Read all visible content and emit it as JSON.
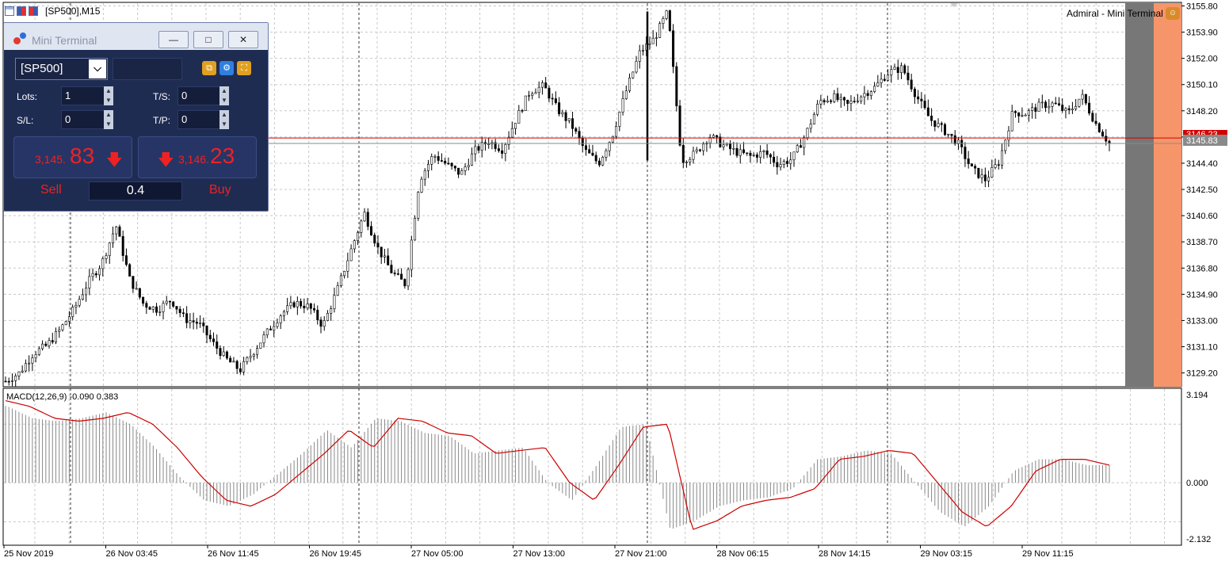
{
  "window": {
    "title": "[SP500],M15"
  },
  "broker": {
    "name": "Admiral - Mini Terminal"
  },
  "colors": {
    "bid_line": "#d40000",
    "ask_line": "#8a8a8a",
    "macd_signal": "#cc0000",
    "macd_hist": "#888888",
    "price_up": "#000000",
    "sell_red": "#ee2222"
  },
  "mini_terminal": {
    "title": "Mini Terminal",
    "symbol": "[SP500]",
    "lots_label": "Lots:",
    "lots_value": "1",
    "ts_label": "T/S:",
    "ts_value": "0",
    "sl_label": "S/L:",
    "sl_value": "0",
    "tp_label": "T/P:",
    "tp_value": "0",
    "sell_price_small": "3,145.",
    "sell_price_big": "83",
    "buy_price_small": "3,146.",
    "buy_price_big": "23",
    "sell_label": "Sell",
    "buy_label": "Buy",
    "volume": "0.4",
    "buttons": {
      "minimize": "—",
      "restore": "□",
      "close": "✕"
    },
    "tools": [
      "copy-icon",
      "settings-icon",
      "expand-icon"
    ]
  },
  "price_axis": {
    "ticks": [
      "3155.80",
      "3153.90",
      "3152.00",
      "3150.10",
      "3148.20",
      "3146.30",
      "3144.40",
      "3142.50",
      "3140.60",
      "3138.70",
      "3136.80",
      "3134.90",
      "3133.00",
      "3131.10",
      "3129.20"
    ],
    "bid_label": "3145.83",
    "ask_label": "3146.23"
  },
  "macd": {
    "label": "MACD(12,26,9) -0.090 0.383",
    "axis_ticks": [
      "3.194",
      "0.000",
      "-2.132"
    ]
  },
  "time_axis": {
    "ticks": [
      "25 Nov 2019",
      "26 Nov 03:45",
      "26 Nov 11:45",
      "26 Nov 19:45",
      "27 Nov 05:00",
      "27 Nov 13:00",
      "27 Nov 21:00",
      "28 Nov 06:15",
      "28 Nov 14:15",
      "29 Nov 03:15",
      "29 Nov 11:15"
    ]
  },
  "chart_data": [
    {
      "type": "candlestick",
      "symbol": "[SP500]",
      "timeframe": "M15",
      "close_path": [
        3128.6,
        3129.2,
        3130.6,
        3131.2,
        3132.4,
        3133.9,
        3135.8,
        3137.2,
        3139.9,
        3136.0,
        3134.2,
        3133.8,
        3134.5,
        3133.1,
        3132.8,
        3131.4,
        3130.2,
        3129.4,
        3130.8,
        3132.2,
        3133.5,
        3134.3,
        3134.0,
        3132.6,
        3135.1,
        3138.0,
        3140.8,
        3138.2,
        3136.5,
        3135.6,
        3143.2,
        3145.0,
        3144.3,
        3143.6,
        3145.3,
        3146.0,
        3145.4,
        3147.6,
        3149.6,
        3150.0,
        3148.3,
        3147.2,
        3145.3,
        3144.4,
        3146.5,
        3149.7,
        3152.5,
        3153.4,
        3155.4,
        3144.6,
        3145.1,
        3146.4,
        3145.7,
        3145.2,
        3144.9,
        3145.2,
        3144.3,
        3144.7,
        3146.5,
        3148.9,
        3149.2,
        3148.6,
        3149.3,
        3149.9,
        3151.0,
        3151.3,
        3149.3,
        3147.6,
        3146.8,
        3145.9,
        3144.0,
        3143.2,
        3144.5,
        3148.1,
        3148.0,
        3148.6,
        3148.7,
        3148.0,
        3149.3,
        3147.3,
        3145.83
      ],
      "ylim": [
        3128.2,
        3156.0
      ],
      "bid": 3145.83,
      "ask": 3146.23
    },
    {
      "type": "histogram",
      "name": "MACD(12,26,9)",
      "main_value": -0.09,
      "signal_value": 0.383,
      "signal_path": [
        2.8,
        2.6,
        2.2,
        2.1,
        2.2,
        2.4,
        2.0,
        1.2,
        0.2,
        -0.6,
        -0.8,
        -0.4,
        0.3,
        1.0,
        1.8,
        1.2,
        2.2,
        2.1,
        1.7,
        1.6,
        1.0,
        1.1,
        1.2,
        0.0,
        -0.6,
        0.6,
        1.9,
        2.0,
        -1.6,
        -1.3,
        -0.8,
        -0.6,
        -0.5,
        -0.2,
        0.8,
        0.9,
        1.1,
        1.0,
        0.0,
        -1.0,
        -1.5,
        -0.8,
        0.4,
        0.8,
        0.8,
        0.6
      ],
      "ylim": [
        -2.132,
        3.194
      ]
    }
  ]
}
